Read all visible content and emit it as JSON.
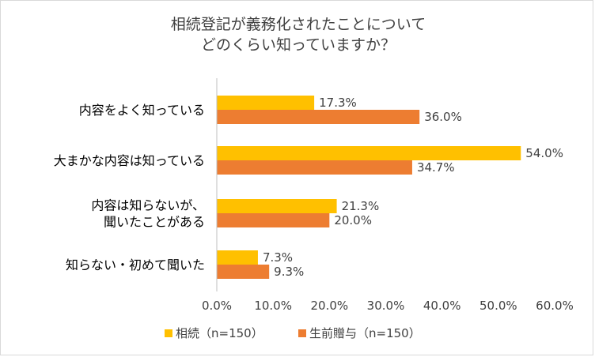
{
  "chart_data": {
    "type": "bar",
    "orientation": "horizontal",
    "title": [
      "相続登記が義務化されたことについて",
      "どのくらい知っていますか？"
    ],
    "categories": [
      [
        "内容をよく知っている"
      ],
      [
        "大まかな内容は知っている"
      ],
      [
        "内容は知らないが、",
        "聞いたことがある"
      ],
      [
        "知らない・初めて聞いた"
      ]
    ],
    "series": [
      {
        "name": "相続（n=150）",
        "color": "#FFC000",
        "values": [
          17.3,
          54.0,
          21.3,
          7.3
        ],
        "labels": [
          "17.3%",
          "54.0%",
          "21.3%",
          "7.3%"
        ]
      },
      {
        "name": "生前贈与（n=150）",
        "color": "#ED7D31",
        "values": [
          36.0,
          34.7,
          20.0,
          9.3
        ],
        "labels": [
          "36.0%",
          "34.7%",
          "20.0%",
          "9.3%"
        ]
      }
    ],
    "xlim": [
      0,
      60
    ],
    "xticks": [
      "0.0%",
      "10.0%",
      "20.0%",
      "30.0%",
      "40.0%",
      "50.0%",
      "60.0%"
    ],
    "grid": false,
    "legend_position": "bottom"
  }
}
